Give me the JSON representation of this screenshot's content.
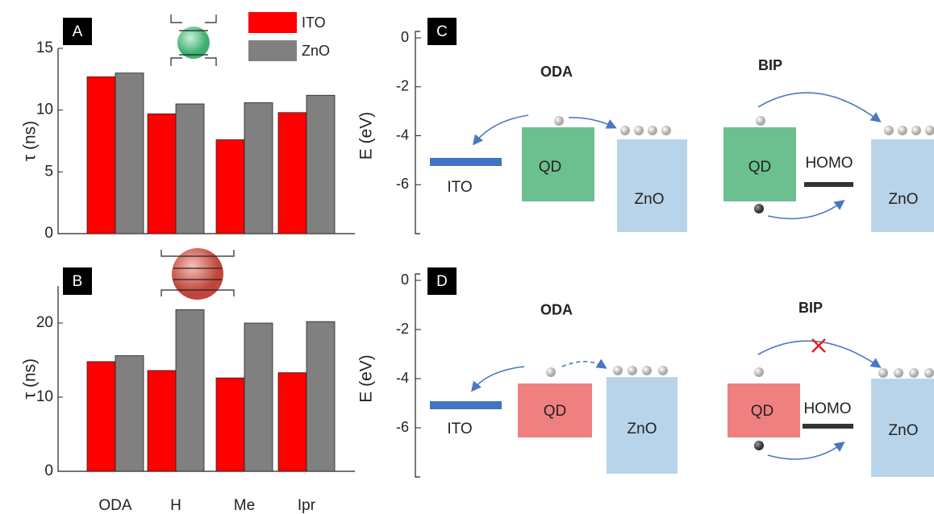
{
  "chart_data": [
    {
      "type": "bar",
      "panel_label": "A",
      "ylabel": "τ (ns)",
      "ylim": [
        0,
        15
      ],
      "yticks": [
        0,
        5,
        10,
        15
      ],
      "legend": true,
      "series": [
        {
          "name": "ITO",
          "color": "#ff0000",
          "values": [
            12.7,
            9.7,
            7.6,
            9.8
          ]
        },
        {
          "name": "ZnO",
          "color": "#808080",
          "values": [
            13.0,
            10.5,
            10.6,
            11.2
          ]
        }
      ]
    },
    {
      "type": "bar",
      "panel_label": "B",
      "ylabel": "τ (ns)",
      "ylim": [
        0,
        25
      ],
      "yticks": [
        0,
        10,
        20
      ],
      "legend": false,
      "categories": [
        "ODA",
        "H",
        "Me",
        "Ipr"
      ],
      "series": [
        {
          "name": "ITO",
          "color": "#ff0000",
          "values": [
            14.8,
            13.6,
            12.6,
            13.3
          ]
        },
        {
          "name": "ZnO",
          "color": "#808080",
          "values": [
            15.6,
            21.8,
            20.0,
            20.2
          ]
        }
      ]
    },
    {
      "type": "diagram",
      "panel_label": "C",
      "ylabel": "E (eV)",
      "ylim": [
        0,
        -8
      ],
      "yticks": [
        0,
        -2,
        -4,
        -6
      ],
      "left_title": "ODA",
      "right_title": "BIP",
      "labels": [
        "ITO",
        "QD",
        "ZnO",
        "QD",
        "HOMO",
        "ZnO"
      ]
    },
    {
      "type": "diagram",
      "panel_label": "D",
      "ylabel": "E (eV)",
      "ylim": [
        0,
        -8
      ],
      "yticks": [
        0,
        -2,
        -4,
        -6
      ],
      "left_title": "ODA",
      "right_title": "BIP",
      "labels": [
        "ITO",
        "QD",
        "ZnO",
        "QD",
        "HOMO",
        "ZnO"
      ]
    }
  ]
}
